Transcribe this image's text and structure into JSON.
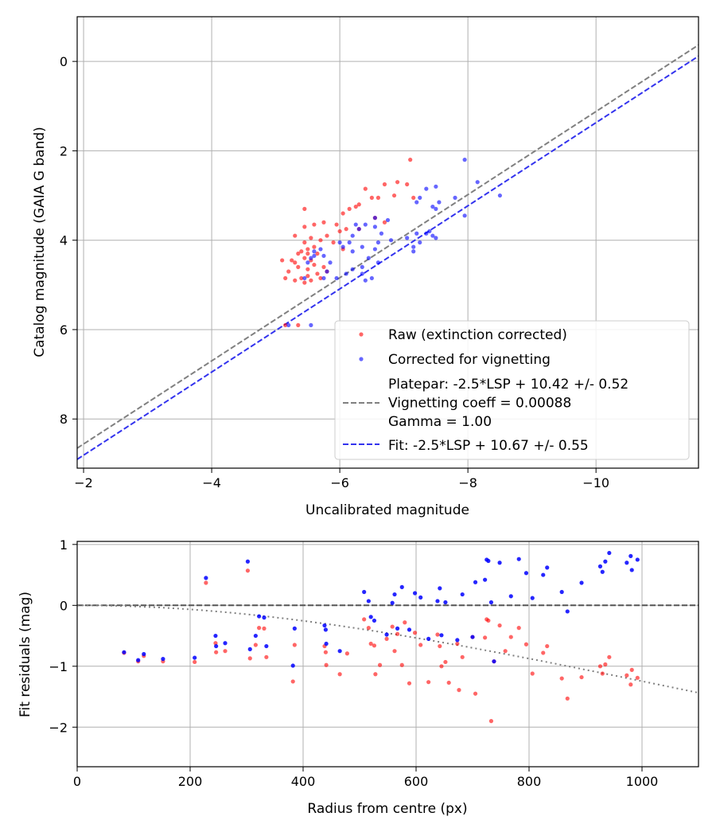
{
  "chart_data": [
    {
      "type": "scatter",
      "title": "",
      "xlabel": "Uncalibrated magnitude",
      "ylabel": "Catalog magnitude (GAIA G band)",
      "xlim": [
        -1.9,
        -11.6
      ],
      "ylim": [
        9.1,
        -1.0
      ],
      "x_ticks": [
        -2,
        -4,
        -6,
        -8,
        -10
      ],
      "x_tick_labels": [
        "−2",
        "−4",
        "−6",
        "−8",
        "−10"
      ],
      "y_ticks": [
        0,
        2,
        4,
        6,
        8
      ],
      "y_tick_labels": [
        "0",
        "2",
        "4",
        "6",
        "8"
      ],
      "grid": true,
      "legend_position": "lower-right",
      "series": [
        {
          "name": "Raw (extinction corrected)",
          "color": "#ff0000",
          "points": [
            [
              -7.1,
              2.2
            ],
            [
              -6.9,
              2.7
            ],
            [
              -7.05,
              2.75
            ],
            [
              -6.7,
              2.75
            ],
            [
              -6.85,
              3.0
            ],
            [
              -7.15,
              3.05
            ],
            [
              -6.6,
              3.05
            ],
            [
              -6.4,
              2.85
            ],
            [
              -6.5,
              3.05
            ],
            [
              -6.3,
              3.2
            ],
            [
              -6.25,
              3.25
            ],
            [
              -6.15,
              3.3
            ],
            [
              -6.05,
              3.4
            ],
            [
              -6.55,
              3.5
            ],
            [
              -6.7,
              3.6
            ],
            [
              -6.1,
              3.75
            ],
            [
              -6.3,
              3.75
            ],
            [
              -6.0,
              3.8
            ],
            [
              -5.95,
              3.65
            ],
            [
              -5.75,
              3.6
            ],
            [
              -5.6,
              3.65
            ],
            [
              -5.45,
              3.3
            ],
            [
              -5.45,
              3.7
            ],
            [
              -5.8,
              3.9
            ],
            [
              -5.55,
              3.95
            ],
            [
              -5.3,
              3.9
            ],
            [
              -5.7,
              4.0
            ],
            [
              -5.9,
              4.05
            ],
            [
              -6.05,
              4.2
            ],
            [
              -5.45,
              4.05
            ],
            [
              -5.6,
              4.15
            ],
            [
              -5.5,
              4.2
            ],
            [
              -5.4,
              4.25
            ],
            [
              -5.5,
              4.3
            ],
            [
              -5.35,
              4.3
            ],
            [
              -5.45,
              4.4
            ],
            [
              -5.55,
              4.45
            ],
            [
              -5.3,
              4.5
            ],
            [
              -5.6,
              4.55
            ],
            [
              -5.35,
              4.6
            ],
            [
              -5.75,
              4.6
            ],
            [
              -5.5,
              4.65
            ],
            [
              -5.25,
              4.45
            ],
            [
              -5.1,
              4.45
            ],
            [
              -5.2,
              4.7
            ],
            [
              -5.65,
              4.75
            ],
            [
              -5.5,
              4.8
            ],
            [
              -5.4,
              4.85
            ],
            [
              -5.3,
              4.9
            ],
            [
              -5.55,
              4.9
            ],
            [
              -5.15,
              4.85
            ],
            [
              -5.65,
              4.3
            ],
            [
              -5.8,
              4.7
            ],
            [
              -5.7,
              4.85
            ],
            [
              -5.45,
              4.95
            ],
            [
              -5.15,
              5.9
            ],
            [
              -5.35,
              5.9
            ]
          ]
        },
        {
          "name": "Corrected for vignetting",
          "color": "#0000ff",
          "points": [
            [
              -7.95,
              2.2
            ],
            [
              -8.15,
              2.7
            ],
            [
              -7.8,
              3.05
            ],
            [
              -7.5,
              2.8
            ],
            [
              -7.35,
              2.85
            ],
            [
              -7.55,
              3.15
            ],
            [
              -7.25,
              3.05
            ],
            [
              -7.45,
              3.25
            ],
            [
              -7.5,
              3.3
            ],
            [
              -7.2,
              3.15
            ],
            [
              -7.95,
              3.45
            ],
            [
              -8.5,
              3.0
            ],
            [
              -6.55,
              3.5
            ],
            [
              -6.75,
              3.55
            ],
            [
              -6.4,
              3.65
            ],
            [
              -6.25,
              3.65
            ],
            [
              -6.55,
              3.7
            ],
            [
              -6.3,
              3.75
            ],
            [
              -6.65,
              3.85
            ],
            [
              -6.2,
              3.9
            ],
            [
              -7.2,
              3.85
            ],
            [
              -7.4,
              3.8
            ],
            [
              -7.45,
              3.9
            ],
            [
              -7.5,
              3.95
            ],
            [
              -7.35,
              3.85
            ],
            [
              -7.15,
              4.15
            ],
            [
              -7.15,
              4.25
            ],
            [
              -7.25,
              4.05
            ],
            [
              -7.05,
              3.95
            ],
            [
              -6.8,
              4.0
            ],
            [
              -6.6,
              4.05
            ],
            [
              -6.55,
              4.2
            ],
            [
              -6.35,
              4.15
            ],
            [
              -6.15,
              4.05
            ],
            [
              -6.05,
              4.15
            ],
            [
              -6.2,
              4.25
            ],
            [
              -6.45,
              4.4
            ],
            [
              -6.6,
              4.5
            ],
            [
              -6.35,
              4.6
            ],
            [
              -6.2,
              4.65
            ],
            [
              -6.1,
              4.75
            ],
            [
              -5.95,
              4.85
            ],
            [
              -6.35,
              4.75
            ],
            [
              -6.5,
              4.85
            ],
            [
              -6.4,
              4.9
            ],
            [
              -5.6,
              4.25
            ],
            [
              -5.75,
              4.35
            ],
            [
              -5.85,
              4.5
            ],
            [
              -5.8,
              4.7
            ],
            [
              -5.6,
              4.35
            ],
            [
              -5.55,
              4.4
            ],
            [
              -5.5,
              4.5
            ],
            [
              -5.45,
              4.85
            ],
            [
              -5.75,
              4.85
            ],
            [
              -6.0,
              4.05
            ],
            [
              -5.55,
              5.9
            ],
            [
              -5.2,
              5.9
            ],
            [
              -5.7,
              4.2
            ]
          ]
        }
      ],
      "lines": [
        {
          "name": "Platepar: -2.5*LSP + 10.42 +/- 0.52\nVignetting coeff = 0.00088\nGamma = 1.00",
          "color": "#808080",
          "slope": 0.93,
          "intercept": 10.42,
          "style": "dashed"
        },
        {
          "name": "Fit: -2.5*LSP + 10.67 +/- 0.55",
          "color": "#3333ee",
          "slope": 0.93,
          "intercept": 10.67,
          "style": "dashed"
        }
      ]
    },
    {
      "type": "scatter",
      "title": "",
      "xlabel": "Radius from centre (px)",
      "ylabel": "Fit residuals (mag)",
      "xlim": [
        0,
        1100
      ],
      "ylim": [
        -2.65,
        1.05
      ],
      "x_ticks": [
        0,
        200,
        400,
        600,
        800,
        1000
      ],
      "x_tick_labels": [
        "0",
        "200",
        "400",
        "600",
        "800",
        "1000"
      ],
      "y_ticks": [
        1,
        0,
        -1,
        -2
      ],
      "y_tick_labels": [
        "1",
        "0",
        "−1",
        "−2"
      ],
      "grid": true,
      "series": [
        {
          "name": "Raw (extinction corrected)",
          "color": "#ff0000",
          "points": [
            [
              83,
              -0.78
            ],
            [
              108,
              -0.92
            ],
            [
              118,
              -0.83
            ],
            [
              152,
              -0.92
            ],
            [
              208,
              -0.93
            ],
            [
              228,
              0.37
            ],
            [
              245,
              -0.62
            ],
            [
              246,
              -0.77
            ],
            [
              262,
              -0.75
            ],
            [
              302,
              0.57
            ],
            [
              306,
              -0.87
            ],
            [
              316,
              -0.65
            ],
            [
              322,
              -0.37
            ],
            [
              331,
              -0.38
            ],
            [
              335,
              -0.85
            ],
            [
              382,
              -1.25
            ],
            [
              385,
              -0.65
            ],
            [
              438,
              -0.67
            ],
            [
              440,
              -0.77
            ],
            [
              441,
              -0.98
            ],
            [
              465,
              -1.13
            ],
            [
              478,
              -0.79
            ],
            [
              508,
              -0.23
            ],
            [
              516,
              -0.37
            ],
            [
              520,
              -0.63
            ],
            [
              526,
              -0.66
            ],
            [
              528,
              -1.13
            ],
            [
              536,
              -0.98
            ],
            [
              548,
              -0.55
            ],
            [
              558,
              -0.35
            ],
            [
              562,
              -0.75
            ],
            [
              567,
              -0.47
            ],
            [
              575,
              -0.98
            ],
            [
              580,
              -0.28
            ],
            [
              588,
              -1.28
            ],
            [
              598,
              -0.45
            ],
            [
              608,
              -0.65
            ],
            [
              622,
              -1.26
            ],
            [
              638,
              -0.48
            ],
            [
              642,
              -0.67
            ],
            [
              645,
              -1.0
            ],
            [
              652,
              -0.93
            ],
            [
              658,
              -1.27
            ],
            [
              673,
              -0.63
            ],
            [
              676,
              -1.39
            ],
            [
              682,
              -0.85
            ],
            [
              700,
              -0.52
            ],
            [
              705,
              -1.45
            ],
            [
              722,
              -0.53
            ],
            [
              725,
              -0.23
            ],
            [
              728,
              -0.25
            ],
            [
              733,
              -1.9
            ],
            [
              738,
              -0.92
            ],
            [
              748,
              -0.33
            ],
            [
              758,
              -0.75
            ],
            [
              768,
              -0.52
            ],
            [
              782,
              -0.37
            ],
            [
              795,
              -0.64
            ],
            [
              806,
              -1.12
            ],
            [
              825,
              -0.78
            ],
            [
              832,
              -0.67
            ],
            [
              858,
              -1.2
            ],
            [
              868,
              -1.53
            ],
            [
              893,
              -1.18
            ],
            [
              926,
              -1.0
            ],
            [
              930,
              -1.12
            ],
            [
              935,
              -0.97
            ],
            [
              942,
              -0.85
            ],
            [
              973,
              -1.15
            ],
            [
              980,
              -1.3
            ],
            [
              982,
              -1.06
            ],
            [
              992,
              -1.19
            ]
          ]
        },
        {
          "name": "Corrected for vignetting",
          "color": "#0000ff",
          "points": [
            [
              83,
              -0.77
            ],
            [
              108,
              -0.9
            ],
            [
              118,
              -0.8
            ],
            [
              152,
              -0.88
            ],
            [
              208,
              -0.86
            ],
            [
              228,
              0.45
            ],
            [
              245,
              -0.5
            ],
            [
              246,
              -0.67
            ],
            [
              262,
              -0.62
            ],
            [
              302,
              0.72
            ],
            [
              306,
              -0.72
            ],
            [
              316,
              -0.5
            ],
            [
              322,
              -0.18
            ],
            [
              331,
              -0.2
            ],
            [
              335,
              -0.67
            ],
            [
              382,
              -0.99
            ],
            [
              385,
              -0.38
            ],
            [
              438,
              -0.33
            ],
            [
              440,
              -0.4
            ],
            [
              441,
              -0.63
            ],
            [
              465,
              -0.75
            ],
            [
              508,
              0.22
            ],
            [
              516,
              0.07
            ],
            [
              520,
              -0.19
            ],
            [
              526,
              -0.25
            ],
            [
              548,
              -0.48
            ],
            [
              558,
              0.04
            ],
            [
              562,
              0.18
            ],
            [
              567,
              -0.38
            ],
            [
              575,
              0.3
            ],
            [
              588,
              -0.4
            ],
            [
              598,
              0.2
            ],
            [
              608,
              0.13
            ],
            [
              622,
              -0.55
            ],
            [
              638,
              0.07
            ],
            [
              642,
              0.28
            ],
            [
              645,
              -0.49
            ],
            [
              652,
              0.05
            ],
            [
              673,
              -0.57
            ],
            [
              682,
              0.18
            ],
            [
              700,
              -0.52
            ],
            [
              705,
              0.38
            ],
            [
              722,
              0.42
            ],
            [
              725,
              0.75
            ],
            [
              728,
              0.73
            ],
            [
              733,
              0.05
            ],
            [
              738,
              -0.92
            ],
            [
              748,
              0.7
            ],
            [
              768,
              0.15
            ],
            [
              782,
              0.76
            ],
            [
              795,
              0.53
            ],
            [
              806,
              0.12
            ],
            [
              825,
              0.5
            ],
            [
              832,
              0.62
            ],
            [
              858,
              0.22
            ],
            [
              868,
              -0.1
            ],
            [
              893,
              0.37
            ],
            [
              926,
              0.64
            ],
            [
              930,
              0.55
            ],
            [
              935,
              0.72
            ],
            [
              942,
              0.86
            ],
            [
              973,
              0.7
            ],
            [
              980,
              0.81
            ],
            [
              982,
              0.58
            ],
            [
              992,
              0.75
            ]
          ]
        }
      ],
      "lines": [
        {
          "name": "zero",
          "color": "#555555",
          "style": "dashed"
        },
        {
          "name": "vignetting model",
          "color": "#808080",
          "style": "dotted",
          "coeff": 0.00088
        }
      ]
    }
  ]
}
